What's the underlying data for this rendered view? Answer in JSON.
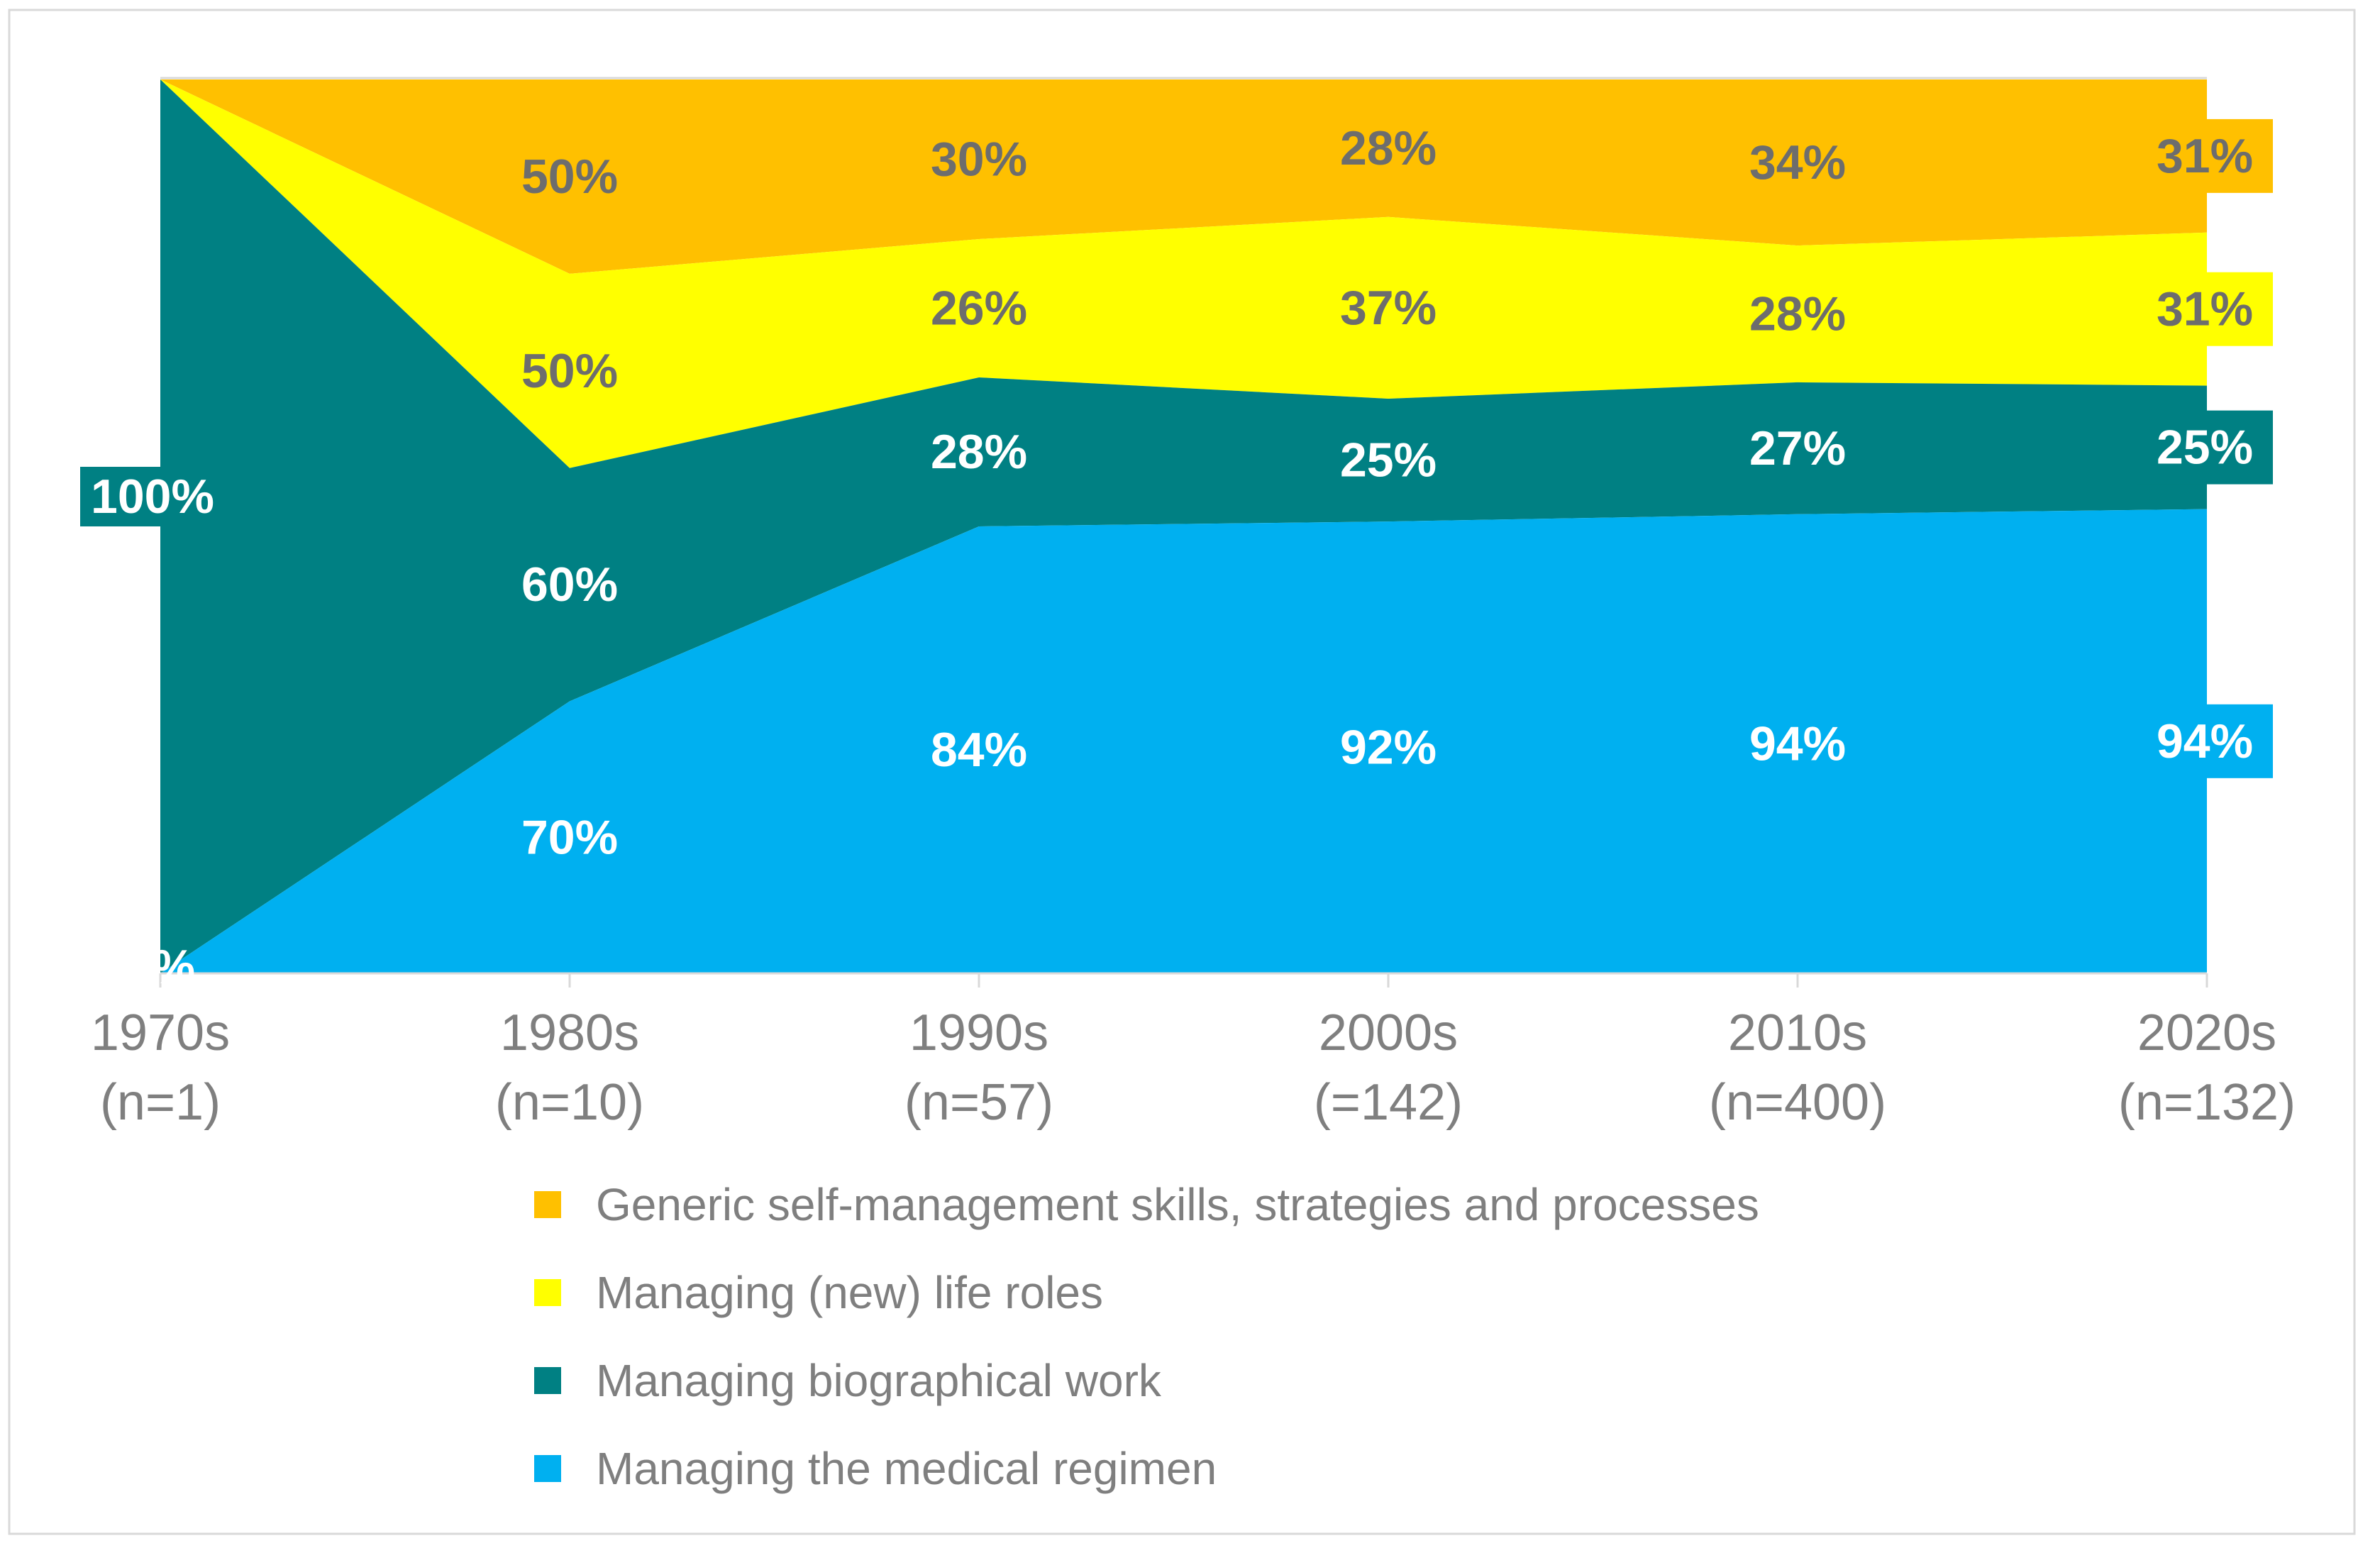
{
  "chart_data": {
    "type": "area",
    "stacking": "stacked-normalized (each decade column scaled to the sum of the four series values)",
    "categories": [
      {
        "decade": "1970s",
        "n": "(n=1)"
      },
      {
        "decade": "1980s",
        "n": "(n=10)"
      },
      {
        "decade": "1990s",
        "n": "(n=57)"
      },
      {
        "decade": "2000s",
        "n": "(=142)"
      },
      {
        "decade": "2010s",
        "n": "(n=400)"
      },
      {
        "decade": "2020s",
        "n": "(n=132)"
      }
    ],
    "series": [
      {
        "name": "Generic self-management skills, strategies and processes",
        "color": "#FFC000",
        "label_color": "#6D6D6D",
        "values": [
          0,
          50,
          30,
          28,
          34,
          31
        ]
      },
      {
        "name": "Managing (new) life roles",
        "color": "#FFFF00",
        "label_color": "#6D6D6D",
        "values": [
          0,
          50,
          26,
          37,
          28,
          31
        ]
      },
      {
        "name": "Managing biographical work",
        "color": "#008083",
        "label_color": "#FFFFFF",
        "values": [
          100,
          60,
          28,
          25,
          27,
          25
        ]
      },
      {
        "name": "Managing the medical regimen",
        "color": "#00B0F0",
        "label_color": "#FFFFFF",
        "values": [
          0,
          70,
          84,
          92,
          94,
          94
        ]
      }
    ],
    "value_suffix": "%",
    "legend_position": "bottom-left",
    "grid": "top 100% line and baseline only",
    "axis_color": "#D9D9D9",
    "text_color": "#7F7F7F"
  }
}
